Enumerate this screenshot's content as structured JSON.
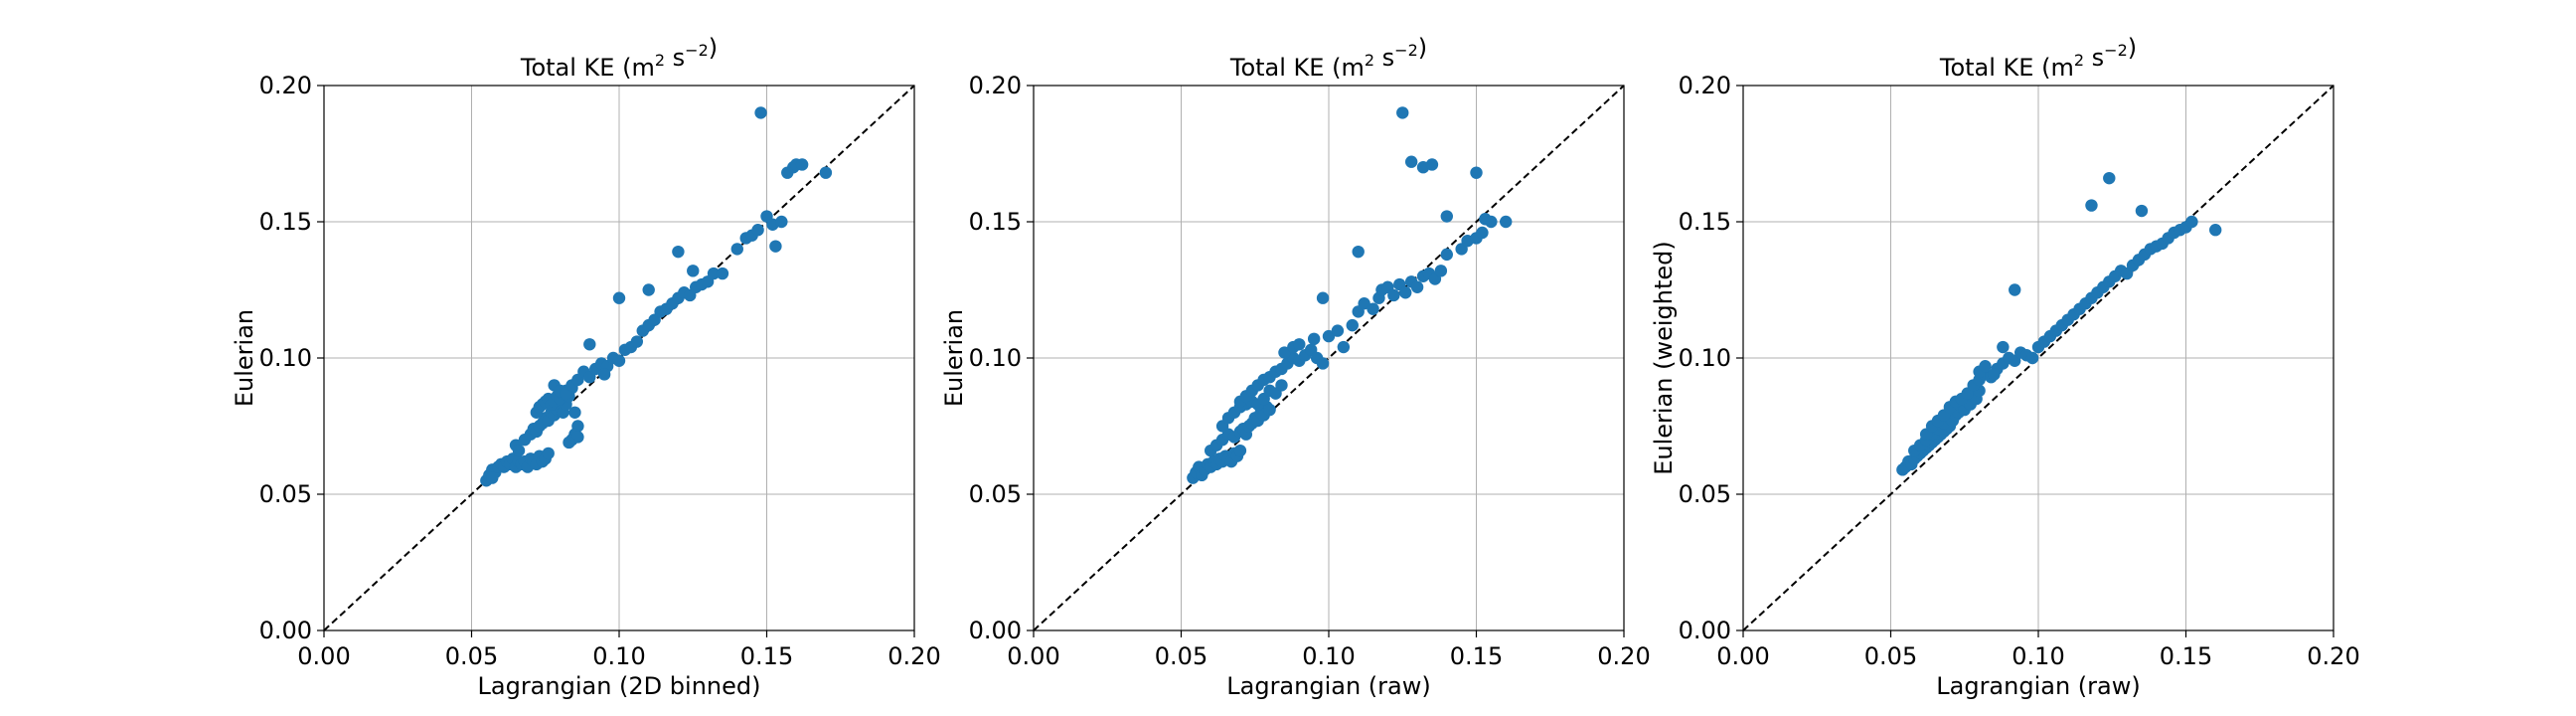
{
  "colors": {
    "points": "#1f77b4",
    "grid": "#b0b0b0",
    "diagonal": "#000000"
  },
  "chart_data": [
    {
      "type": "scatter",
      "title": "Total KE (m2 s−2)",
      "title_main": "Total KE (m",
      "title_sup1": "2",
      "title_mid": " s",
      "title_sup2": "−2",
      "title_end": ")",
      "xlabel": "Lagrangian (2D binned)",
      "ylabel": "Eulerian",
      "xlim": [
        0,
        0.2
      ],
      "ylim": [
        0,
        0.2
      ],
      "xticks": [
        "0.00",
        "0.05",
        "0.10",
        "0.15",
        "0.20"
      ],
      "yticks": [
        "0.00",
        "0.05",
        "0.10",
        "0.15",
        "0.20"
      ],
      "grid": true,
      "reference_line": "y = x (dashed)",
      "x": [
        0.055,
        0.056,
        0.057,
        0.058,
        0.059,
        0.06,
        0.057,
        0.061,
        0.062,
        0.063,
        0.064,
        0.065,
        0.066,
        0.067,
        0.068,
        0.069,
        0.07,
        0.071,
        0.072,
        0.073,
        0.074,
        0.075,
        0.076,
        0.065,
        0.066,
        0.068,
        0.07,
        0.071,
        0.072,
        0.073,
        0.074,
        0.075,
        0.076,
        0.077,
        0.078,
        0.079,
        0.08,
        0.081,
        0.082,
        0.072,
        0.073,
        0.074,
        0.075,
        0.076,
        0.077,
        0.078,
        0.079,
        0.08,
        0.081,
        0.082,
        0.083,
        0.084,
        0.085,
        0.086,
        0.078,
        0.08,
        0.082,
        0.084,
        0.086,
        0.088,
        0.09,
        0.092,
        0.094,
        0.096,
        0.098,
        0.1,
        0.102,
        0.104,
        0.106,
        0.108,
        0.11,
        0.112,
        0.114,
        0.116,
        0.118,
        0.12,
        0.122,
        0.124,
        0.126,
        0.128,
        0.13,
        0.132,
        0.12,
        0.125,
        0.135,
        0.14,
        0.143,
        0.145,
        0.147,
        0.15,
        0.152,
        0.153,
        0.155,
        0.157,
        0.159,
        0.16,
        0.162,
        0.17,
        0.148,
        0.1,
        0.11,
        0.09,
        0.095,
        0.085,
        0.084,
        0.086,
        0.083
      ],
      "y": [
        0.055,
        0.057,
        0.059,
        0.058,
        0.06,
        0.061,
        0.056,
        0.06,
        0.062,
        0.061,
        0.063,
        0.06,
        0.062,
        0.061,
        0.062,
        0.06,
        0.063,
        0.062,
        0.061,
        0.064,
        0.062,
        0.063,
        0.065,
        0.068,
        0.066,
        0.07,
        0.072,
        0.074,
        0.073,
        0.075,
        0.076,
        0.078,
        0.077,
        0.08,
        0.079,
        0.081,
        0.082,
        0.08,
        0.083,
        0.08,
        0.082,
        0.083,
        0.084,
        0.085,
        0.083,
        0.084,
        0.086,
        0.085,
        0.087,
        0.088,
        0.086,
        0.089,
        0.08,
        0.075,
        0.09,
        0.088,
        0.087,
        0.09,
        0.092,
        0.095,
        0.093,
        0.096,
        0.098,
        0.097,
        0.1,
        0.099,
        0.103,
        0.104,
        0.106,
        0.11,
        0.112,
        0.114,
        0.117,
        0.118,
        0.12,
        0.122,
        0.124,
        0.123,
        0.126,
        0.127,
        0.128,
        0.131,
        0.139,
        0.132,
        0.131,
        0.14,
        0.144,
        0.145,
        0.147,
        0.152,
        0.149,
        0.141,
        0.15,
        0.168,
        0.17,
        0.171,
        0.171,
        0.168,
        0.19,
        0.122,
        0.125,
        0.105,
        0.094,
        0.072,
        0.07,
        0.071,
        0.069
      ]
    },
    {
      "type": "scatter",
      "title": "Total KE (m2 s−2)",
      "title_main": "Total KE (m",
      "title_sup1": "2",
      "title_mid": " s",
      "title_sup2": "−2",
      "title_end": ")",
      "xlabel": "Lagrangian (raw)",
      "ylabel": "Eulerian",
      "xlim": [
        0,
        0.2
      ],
      "ylim": [
        0,
        0.2
      ],
      "xticks": [
        "0.00",
        "0.05",
        "0.10",
        "0.15",
        "0.20"
      ],
      "yticks": [
        "0.00",
        "0.05",
        "0.10",
        "0.15",
        "0.20"
      ],
      "grid": true,
      "reference_line": "y = x (dashed)",
      "x": [
        0.054,
        0.055,
        0.056,
        0.057,
        0.058,
        0.059,
        0.06,
        0.061,
        0.062,
        0.063,
        0.064,
        0.065,
        0.066,
        0.067,
        0.068,
        0.069,
        0.07,
        0.06,
        0.062,
        0.064,
        0.066,
        0.068,
        0.07,
        0.071,
        0.072,
        0.073,
        0.074,
        0.075,
        0.076,
        0.077,
        0.078,
        0.079,
        0.08,
        0.064,
        0.066,
        0.068,
        0.07,
        0.072,
        0.074,
        0.076,
        0.078,
        0.08,
        0.082,
        0.084,
        0.07,
        0.072,
        0.074,
        0.076,
        0.078,
        0.08,
        0.082,
        0.084,
        0.086,
        0.088,
        0.09,
        0.092,
        0.094,
        0.096,
        0.098,
        0.085,
        0.088,
        0.09,
        0.095,
        0.1,
        0.103,
        0.105,
        0.108,
        0.11,
        0.112,
        0.115,
        0.117,
        0.118,
        0.12,
        0.122,
        0.124,
        0.126,
        0.128,
        0.13,
        0.132,
        0.134,
        0.136,
        0.138,
        0.14,
        0.145,
        0.147,
        0.15,
        0.152,
        0.153,
        0.155,
        0.16,
        0.125,
        0.128,
        0.132,
        0.135,
        0.14,
        0.15,
        0.098,
        0.11
      ],
      "y": [
        0.056,
        0.058,
        0.06,
        0.057,
        0.059,
        0.061,
        0.06,
        0.062,
        0.061,
        0.063,
        0.062,
        0.064,
        0.063,
        0.062,
        0.065,
        0.064,
        0.066,
        0.066,
        0.068,
        0.07,
        0.072,
        0.071,
        0.073,
        0.074,
        0.072,
        0.075,
        0.076,
        0.078,
        0.077,
        0.08,
        0.079,
        0.082,
        0.081,
        0.075,
        0.078,
        0.08,
        0.082,
        0.083,
        0.084,
        0.083,
        0.085,
        0.088,
        0.087,
        0.09,
        0.084,
        0.086,
        0.088,
        0.09,
        0.092,
        0.093,
        0.095,
        0.096,
        0.098,
        0.1,
        0.099,
        0.101,
        0.103,
        0.1,
        0.098,
        0.102,
        0.104,
        0.105,
        0.107,
        0.108,
        0.11,
        0.104,
        0.112,
        0.117,
        0.12,
        0.118,
        0.122,
        0.125,
        0.126,
        0.123,
        0.127,
        0.124,
        0.128,
        0.126,
        0.13,
        0.131,
        0.129,
        0.132,
        0.138,
        0.14,
        0.143,
        0.144,
        0.146,
        0.151,
        0.15,
        0.15,
        0.19,
        0.172,
        0.17,
        0.171,
        0.152,
        0.168,
        0.122,
        0.139
      ]
    },
    {
      "type": "scatter",
      "title": "Total KE (m2 s−2)",
      "title_main": "Total KE (m",
      "title_sup1": "2",
      "title_mid": " s",
      "title_sup2": "−2",
      "title_end": ")",
      "xlabel": "Lagrangian (raw)",
      "ylabel": "Eulerian (weighted)",
      "xlim": [
        0,
        0.2
      ],
      "ylim": [
        0,
        0.2
      ],
      "xticks": [
        "0.00",
        "0.05",
        "0.10",
        "0.15",
        "0.20"
      ],
      "yticks": [
        "0.00",
        "0.05",
        "0.10",
        "0.15",
        "0.20"
      ],
      "grid": true,
      "reference_line": "y = x (dashed)",
      "x": [
        0.054,
        0.055,
        0.056,
        0.057,
        0.058,
        0.059,
        0.06,
        0.061,
        0.062,
        0.063,
        0.064,
        0.065,
        0.066,
        0.067,
        0.068,
        0.069,
        0.07,
        0.058,
        0.06,
        0.062,
        0.064,
        0.066,
        0.068,
        0.07,
        0.071,
        0.072,
        0.073,
        0.074,
        0.075,
        0.076,
        0.077,
        0.078,
        0.079,
        0.08,
        0.062,
        0.064,
        0.066,
        0.068,
        0.07,
        0.072,
        0.074,
        0.076,
        0.078,
        0.08,
        0.082,
        0.084,
        0.086,
        0.088,
        0.09,
        0.092,
        0.094,
        0.096,
        0.098,
        0.1,
        0.102,
        0.104,
        0.106,
        0.108,
        0.11,
        0.112,
        0.114,
        0.116,
        0.118,
        0.12,
        0.122,
        0.124,
        0.126,
        0.128,
        0.13,
        0.132,
        0.134,
        0.136,
        0.138,
        0.14,
        0.142,
        0.144,
        0.146,
        0.148,
        0.15,
        0.152,
        0.16,
        0.118,
        0.124,
        0.135,
        0.088,
        0.092,
        0.08,
        0.085,
        0.082
      ],
      "y": [
        0.059,
        0.06,
        0.062,
        0.061,
        0.063,
        0.064,
        0.065,
        0.066,
        0.067,
        0.068,
        0.069,
        0.07,
        0.071,
        0.072,
        0.073,
        0.074,
        0.075,
        0.066,
        0.068,
        0.07,
        0.072,
        0.074,
        0.076,
        0.078,
        0.077,
        0.079,
        0.08,
        0.082,
        0.081,
        0.084,
        0.083,
        0.086,
        0.085,
        0.088,
        0.072,
        0.075,
        0.077,
        0.079,
        0.082,
        0.084,
        0.085,
        0.087,
        0.09,
        0.092,
        0.094,
        0.093,
        0.096,
        0.098,
        0.1,
        0.099,
        0.102,
        0.101,
        0.1,
        0.104,
        0.106,
        0.108,
        0.11,
        0.112,
        0.114,
        0.116,
        0.118,
        0.12,
        0.122,
        0.124,
        0.126,
        0.128,
        0.13,
        0.132,
        0.131,
        0.134,
        0.136,
        0.138,
        0.14,
        0.141,
        0.142,
        0.144,
        0.146,
        0.147,
        0.148,
        0.15,
        0.147,
        0.156,
        0.166,
        0.154,
        0.104,
        0.125,
        0.095,
        0.094,
        0.097
      ]
    }
  ]
}
